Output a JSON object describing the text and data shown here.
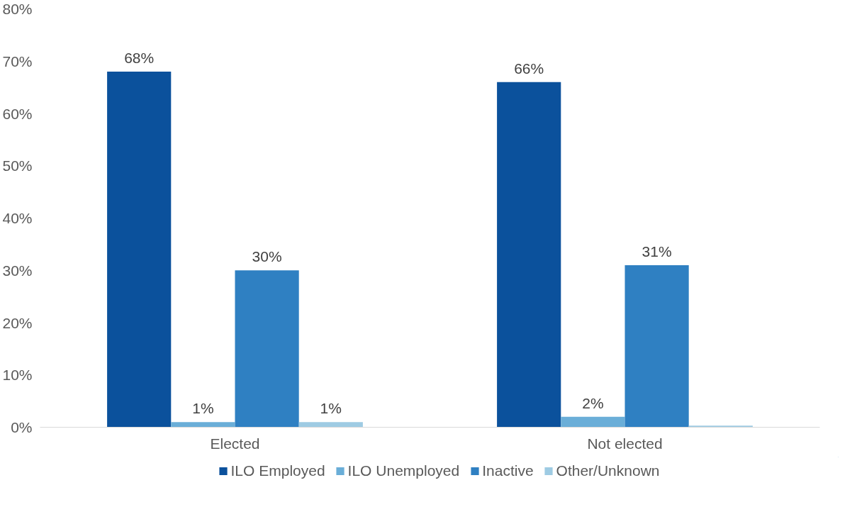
{
  "chart_data": {
    "type": "bar",
    "categories": [
      "Elected",
      "Not elected"
    ],
    "series": [
      {
        "name": "ILO Employed",
        "color": "#0b519c",
        "values": [
          68,
          66
        ],
        "value_labels": [
          "68%",
          "66%"
        ]
      },
      {
        "name": "ILO Unemployed",
        "color": "#6aaed8",
        "values": [
          1,
          2
        ],
        "value_labels": [
          "1%",
          "2%"
        ]
      },
      {
        "name": "Inactive",
        "color": "#2f80c2",
        "values": [
          30,
          31
        ],
        "value_labels": [
          "30%",
          "31%"
        ]
      },
      {
        "name": "Other/Unknown",
        "color": "#9ecbe3",
        "values": [
          1,
          0.3
        ],
        "value_labels": [
          "1%",
          null
        ]
      }
    ],
    "ylim": [
      0,
      80
    ],
    "yticks": [
      {
        "value": 0,
        "label": "0%"
      },
      {
        "value": 10,
        "label": "10%"
      },
      {
        "value": 20,
        "label": "20%"
      },
      {
        "value": 30,
        "label": "30%"
      },
      {
        "value": 40,
        "label": "40%"
      },
      {
        "value": 50,
        "label": "50%"
      },
      {
        "value": 60,
        "label": "60%"
      },
      {
        "value": 70,
        "label": "70%"
      },
      {
        "value": 80,
        "label": "80%"
      }
    ],
    "grid": false,
    "legend": "bottom"
  }
}
